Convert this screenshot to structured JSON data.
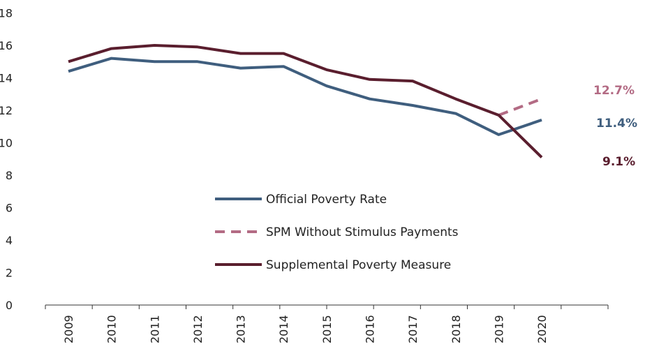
{
  "colors": {
    "official": "#3f5e7e",
    "spm": "#5a1e2e",
    "spm_no_stimulus": "#b36b84",
    "axis": "#333333"
  },
  "chart_data": {
    "type": "line",
    "title": "",
    "xlabel": "",
    "ylabel": "",
    "categories": [
      "2009",
      "2010",
      "2011",
      "2012",
      "2013",
      "2014",
      "2015",
      "2016",
      "2017",
      "2018",
      "2019",
      "2020"
    ],
    "y_ticks": [
      "0",
      "2",
      "4",
      "6",
      "8",
      "10",
      "12",
      "14",
      "16",
      "18"
    ],
    "ylim": [
      0,
      18
    ],
    "grid": false,
    "legend_position": "center",
    "series": [
      {
        "name": "Official Poverty Rate",
        "style": "solid",
        "color_key": "official",
        "x": [
          "2009",
          "2010",
          "2011",
          "2012",
          "2013",
          "2014",
          "2015",
          "2016",
          "2017",
          "2018",
          "2019",
          "2020"
        ],
        "values": [
          14.4,
          15.2,
          15.0,
          15.0,
          14.6,
          14.7,
          13.5,
          12.7,
          12.3,
          11.8,
          10.5,
          11.4
        ],
        "end_label": "11.4%"
      },
      {
        "name": "SPM Without Stimulus Payments",
        "style": "dashed",
        "color_key": "spm_no_stimulus",
        "x": [
          "2019",
          "2020"
        ],
        "values": [
          11.7,
          12.7
        ],
        "end_label": "12.7%"
      },
      {
        "name": "Supplemental Poverty Measure",
        "style": "solid",
        "color_key": "spm",
        "x": [
          "2009",
          "2010",
          "2011",
          "2012",
          "2013",
          "2014",
          "2015",
          "2016",
          "2017",
          "2018",
          "2019",
          "2020"
        ],
        "values": [
          15.0,
          15.8,
          16.0,
          15.9,
          15.5,
          15.5,
          14.5,
          13.9,
          13.8,
          12.7,
          11.7,
          9.1
        ],
        "end_label": "9.1%"
      }
    ]
  }
}
